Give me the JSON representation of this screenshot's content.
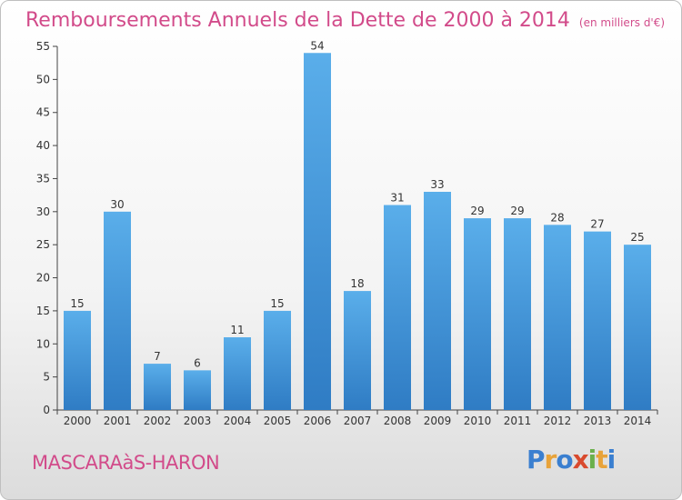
{
  "chart_data": {
    "type": "bar",
    "title": "Remboursements Annuels de la Dette de 2000 à 2014",
    "subtitle": "(en milliers d'€)",
    "categories": [
      "2000",
      "2001",
      "2002",
      "2003",
      "2004",
      "2005",
      "2006",
      "2007",
      "2008",
      "2009",
      "2010",
      "2011",
      "2012",
      "2013",
      "2014"
    ],
    "values": [
      15,
      30,
      7,
      6,
      11,
      15,
      54,
      18,
      31,
      33,
      29,
      29,
      28,
      27,
      25
    ],
    "ylim": [
      0,
      55
    ],
    "yticks": [
      0,
      5,
      10,
      15,
      20,
      25,
      30,
      35,
      40,
      45,
      50,
      55
    ],
    "grid": false,
    "bar_color": "#4d9fe0"
  },
  "footer": {
    "commune": "MASCARAàS-HARON",
    "logo": [
      "P",
      "r",
      "o",
      "x",
      "i",
      "t",
      "i"
    ],
    "logo_colors": [
      "#3a7fd0",
      "#e8a33a",
      "#3a7fd0",
      "#d94a2e",
      "#6ab04c",
      "#e8a33a",
      "#3a7fd0"
    ]
  }
}
